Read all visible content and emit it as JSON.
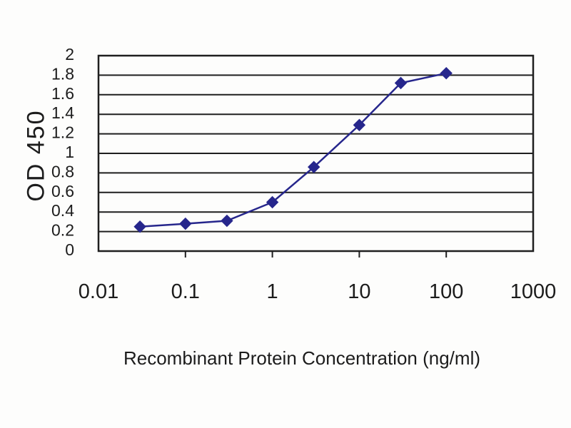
{
  "figure": {
    "background": "#fdfdfc"
  },
  "chart_data": {
    "type": "line",
    "title": "",
    "xlabel": "Recombinant Protein Concentration (ng/ml)",
    "ylabel": "OD 450",
    "x_scale": "log",
    "x": [
      0.03,
      0.1,
      0.3,
      1,
      3,
      10,
      30,
      100
    ],
    "series": [
      {
        "name": "OD 450",
        "values": [
          0.25,
          0.28,
          0.31,
          0.5,
          0.86,
          1.29,
          1.72,
          1.82
        ]
      }
    ],
    "xlim": [
      0.01,
      1000
    ],
    "ylim": [
      0,
      2
    ],
    "x_ticks": [
      0.1,
      1,
      10,
      100
    ],
    "x_tick_labels": [
      "0.01",
      "0.1",
      "1",
      "10",
      "100",
      "1000"
    ],
    "x_tick_label_values": [
      0.01,
      0.1,
      1,
      10,
      100,
      1000
    ],
    "y_ticks": [
      0,
      0.2,
      0.4,
      0.6,
      0.8,
      1,
      1.2,
      1.4,
      1.6,
      1.8,
      2
    ],
    "y_tick_labels": [
      "0",
      "0.2",
      "0.4",
      "0.6",
      "0.8",
      "1",
      "1.2",
      "1.4",
      "1.6",
      "1.8",
      "2"
    ],
    "grid": "horizontal",
    "legend": "none",
    "marker": "diamond",
    "colors": {
      "line": "#26268C",
      "marker": "#26268C",
      "grid": "#1f1f1f",
      "border": "#1f1f1f",
      "text": "#1c1c1c"
    }
  }
}
